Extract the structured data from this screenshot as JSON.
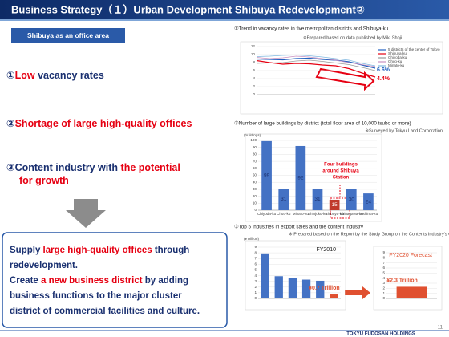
{
  "header": {
    "title": "Business Strategy（１）Urban Development  Shibuya Redevelopment②",
    "company": "TOKYU FUDOSAN HOLDINGS",
    "page": "11"
  },
  "tag": "Shibuya as an office area",
  "points": [
    [
      [
        {
          "text": "①",
          "color": "#1a3070"
        },
        {
          "text": "Low",
          "color": "#e60012"
        },
        {
          "text": " vacancy rates",
          "color": "#1a3070"
        }
      ]
    ],
    [
      [
        {
          "text": "②",
          "color": "#1a3070"
        },
        {
          "text": "Shortage of large high-quality offices",
          "color": "#e60012"
        }
      ]
    ],
    [
      [
        {
          "text": "③Content industry with ",
          "color": "#1a3070"
        },
        {
          "text": "the potential",
          "color": "#e60012"
        }
      ],
      [
        {
          "text": "for growth",
          "color": "#e60012"
        }
      ]
    ]
  ],
  "summary": [
    [
      {
        "text": "Supply ",
        "color": "#1a3070"
      },
      {
        "text": "large high-quality offices",
        "color": "#e60012"
      },
      {
        "text": " through",
        "color": "#1a3070"
      }
    ],
    [
      {
        "text": "redevelopment.",
        "color": "#1a3070"
      }
    ],
    [
      {
        "text": "Create ",
        "color": "#1a3070"
      },
      {
        "text": "a new business district",
        "color": "#e60012"
      },
      {
        "text": " by adding",
        "color": "#1a3070"
      }
    ],
    [
      {
        "text": "business functions to the major cluster",
        "color": "#1a3070"
      }
    ],
    [
      {
        "text": "district of commercial facilities and culture.",
        "color": "#1a3070"
      }
    ]
  ],
  "chart_data": [
    {
      "type": "line",
      "title": "①Trend in vacancy rates in five metropolitan districts and Shibuya-ku",
      "note": "※Prepared based on data published by Miki Shoji",
      "categories": [
        null,
        null,
        null,
        null,
        null,
        null,
        null,
        null,
        null,
        null
      ],
      "ylim": [
        0,
        12
      ],
      "yticks": [
        0,
        2,
        4,
        6,
        8,
        10,
        12
      ],
      "grid": true,
      "series": [
        {
          "name": "5 districts of the center of Tokyo",
          "color": "#2060c0",
          "values": [
            8.9,
            8.8,
            8.7,
            9.0,
            9.1,
            8.8,
            8.6,
            8.2,
            7.4,
            6.6
          ],
          "value_labels": [
            null,
            null,
            null,
            null,
            null,
            null,
            null,
            null,
            null,
            "6.6%"
          ]
        },
        {
          "name": "Shibuya-ku",
          "color": "#e60012",
          "values": [
            8.5,
            8.0,
            7.6,
            7.8,
            7.7,
            7.4,
            7.2,
            6.5,
            5.4,
            4.4
          ],
          "value_labels": [
            null,
            null,
            null,
            null,
            null,
            null,
            null,
            null,
            null,
            "4.4%"
          ]
        },
        {
          "name": "Chiyoda-ku",
          "color": "#9a9a9a",
          "values": [
            7.8,
            7.9,
            8.0,
            8.4,
            8.6,
            8.3,
            7.9,
            7.5,
            6.8,
            6.0
          ]
        },
        {
          "name": "Chuo-ku",
          "color": "#c890c0",
          "values": [
            9.3,
            9.0,
            9.2,
            9.6,
            9.4,
            9.0,
            8.6,
            8.0,
            7.5,
            7.0
          ]
        },
        {
          "name": "Minato-ku",
          "color": "#80b8e0",
          "values": [
            9.5,
            9.6,
            9.8,
            9.9,
            9.7,
            9.4,
            9.0,
            8.6,
            7.8,
            7.2
          ]
        }
      ]
    },
    {
      "type": "bar",
      "title": "②Number of large buildings by district (total floor area of 10,000 tsubo or more)",
      "note": "※Surveyed by Tokyu Land Corporation",
      "ylabel": "(buildings)",
      "categories": [
        "Chiyoda-ku",
        "Chuo-ku",
        "Minato-ku",
        "Shinjuku-ku",
        "Shibuya-ku",
        "Shinagawa-ku",
        "Toshima-ku"
      ],
      "values": [
        99,
        31,
        92,
        31,
        15,
        30,
        24
      ],
      "colors": [
        "#4472c4",
        "#4472c4",
        "#4472c4",
        "#4472c4",
        "#c0392b",
        "#4472c4",
        "#4472c4"
      ],
      "ylim": [
        0,
        100
      ],
      "yticks": [
        0,
        10,
        20,
        30,
        40,
        50,
        60,
        70,
        80,
        90,
        100
      ],
      "grid": true,
      "annotation": [
        "Four buildings",
        "around Shibuya",
        "Station"
      ]
    },
    {
      "type": "bar",
      "title": "③Top 5 industries in export sales and the content industry",
      "note": "※ Prepared based on the Report by the Study Group on the Contents Industry's Growth Strategy",
      "ylabel": "(¥Trillion)",
      "ylim": [
        0,
        9
      ],
      "yticks": [
        0,
        1,
        2,
        3,
        4,
        5,
        6,
        7,
        8,
        9
      ],
      "grid": true,
      "panels": [
        {
          "label": "FY2010",
          "categories": [
            null,
            null,
            null,
            null,
            null,
            null
          ],
          "values": [
            7.9,
            3.9,
            3.6,
            3.3,
            3.1,
            0.7
          ],
          "colors": [
            "#4472c4",
            "#4472c4",
            "#4472c4",
            "#4472c4",
            "#4472c4",
            "#e05030"
          ],
          "value_labels": [
            null,
            null,
            null,
            null,
            null,
            "¥0.7 Trillion"
          ]
        },
        {
          "label": "FY2020 Forecast",
          "categories": [
            null
          ],
          "values": [
            2.3
          ],
          "colors": [
            "#e05030"
          ],
          "value_labels": [
            "¥2.3 Trillion"
          ]
        }
      ]
    }
  ]
}
